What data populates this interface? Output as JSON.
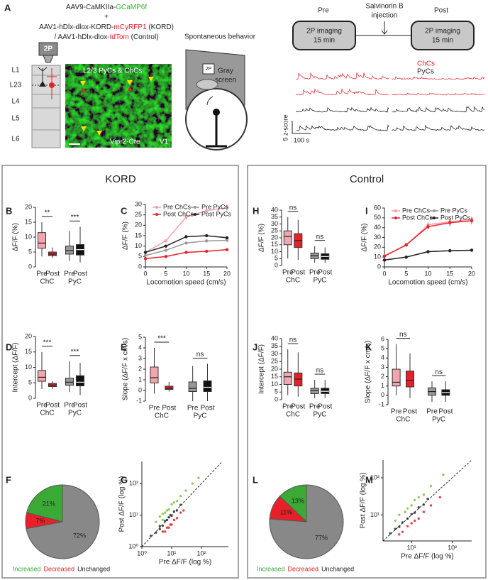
{
  "panel_a": {
    "label": "A",
    "virus": [
      [
        "AAV9-CaMKIIa-",
        "GCaMP6f"
      ],
      [
        "+"
      ],
      [
        "AAV1-hDlx-dlox-KORD-",
        "mCyRFP1",
        " (KORD)"
      ],
      [
        "/ AAV1-hDlx-dlox-",
        "tdTom",
        " (Control)"
      ]
    ],
    "objective": "2P",
    "layers": [
      "L1",
      "L23",
      "L4",
      "L5",
      "L6"
    ],
    "image_labels": {
      "cells": "L2/3 PyCs & ChCs",
      "line": "Vipr2-Cre",
      "area": "V1"
    },
    "behavior": {
      "title": "Spontaneous behavior",
      "objective": "2P",
      "screen": [
        "Gray",
        "screen"
      ]
    },
    "protocol": {
      "pre": "Pre",
      "post": "Post",
      "injection": [
        "Salvinorin B",
        "injection"
      ],
      "imaging": [
        "2P imaging",
        "15 min"
      ]
    },
    "traces": {
      "legend": [
        "ChCs",
        "PyCs"
      ],
      "scale_y": "5 z-score",
      "scale_x": "100 s"
    }
  },
  "sections": [
    "KORD",
    "Control"
  ],
  "chart_data": [
    {
      "type": "box",
      "label": "B",
      "ylabel": "ΔF/F (%)",
      "ylim": [
        0,
        20
      ],
      "yticks": [
        0,
        5,
        10,
        15,
        20
      ],
      "groups": [
        "ChC",
        "PyC"
      ],
      "categories": [
        "Pre",
        "Post"
      ],
      "significance": [
        "**",
        "***"
      ],
      "boxes": [
        [
          {
            "whislo": 3.5,
            "q1": 6.3,
            "med": 8,
            "q3": 11.5,
            "whishi": 15,
            "color": "#f4a6b0"
          },
          {
            "whislo": 3,
            "q1": 3.8,
            "med": 4.3,
            "q3": 5,
            "whishi": 6.5,
            "color": "#e8202a"
          }
        ],
        [
          {
            "whislo": 2,
            "q1": 4.3,
            "med": 5.5,
            "q3": 7,
            "whishi": 12,
            "color": "#999999"
          },
          {
            "whislo": 1.5,
            "q1": 4,
            "med": 5.8,
            "q3": 7.5,
            "whishi": 13.5,
            "color": "#111111"
          }
        ]
      ]
    },
    {
      "type": "line",
      "label": "C",
      "xlabel": "Locomotion speed (cm/s)",
      "ylabel": "ΔF/F (%)",
      "x": [
        0,
        5,
        10,
        15,
        20
      ],
      "xlim": [
        0,
        20
      ],
      "xticks": [
        0,
        5,
        10,
        15,
        20
      ],
      "ylim": [
        0,
        30
      ],
      "yticks": [
        0,
        5,
        10,
        15,
        20,
        25,
        30
      ],
      "series": [
        {
          "name": "Pre ChCs",
          "color": "#f4a0a8",
          "values": [
            7,
            12.5,
            24,
            27,
            28.5
          ],
          "errors": [
            0.5,
            0.6,
            1.5,
            2,
            1.8
          ]
        },
        {
          "name": "Post ChCs",
          "color": "#e8202a",
          "values": [
            4,
            5,
            7,
            7.5,
            8.3
          ],
          "errors": [
            0.2,
            0.2,
            0.5,
            0.5,
            0.7
          ]
        },
        {
          "name": "Pre PyCs",
          "color": "#999999",
          "values": [
            5.5,
            8,
            11.5,
            12.5,
            12.8
          ],
          "errors": [
            0.2,
            0.2,
            0.3,
            0.4,
            0.4
          ]
        },
        {
          "name": "Post PyCs",
          "color": "#222222",
          "values": [
            7,
            10,
            14.5,
            15,
            14
          ],
          "errors": [
            0.3,
            0.3,
            0.5,
            0.5,
            0.5
          ]
        }
      ]
    },
    {
      "type": "box",
      "label": "D",
      "ylabel": "Intercept (ΔF/F)",
      "ylim": [
        0,
        20
      ],
      "yticks": [
        0,
        5,
        10,
        15,
        20
      ],
      "groups": [
        "ChC",
        "PyC"
      ],
      "categories": [
        "Pre",
        "Post"
      ],
      "significance": [
        "***",
        "***"
      ],
      "boxes": [
        [
          {
            "whislo": 3,
            "q1": 5.5,
            "med": 6.8,
            "q3": 9,
            "whishi": 15,
            "color": "#f4a6b0"
          },
          {
            "whislo": 3,
            "q1": 3.8,
            "med": 4.3,
            "q3": 4.8,
            "whishi": 5.5,
            "color": "#e8202a"
          }
        ],
        [
          {
            "whislo": 2,
            "q1": 4.2,
            "med": 5.2,
            "q3": 6.5,
            "whishi": 12,
            "color": "#999999"
          },
          {
            "whislo": 1,
            "q1": 4,
            "med": 5.2,
            "q3": 7.3,
            "whishi": 11.5,
            "color": "#111111"
          }
        ]
      ]
    },
    {
      "type": "box",
      "label": "E",
      "ylabel": "Slope (ΔF/F x cm/s)",
      "ylim": [
        -1,
        5
      ],
      "yticks": [
        -1,
        0,
        1,
        2,
        3,
        4,
        5
      ],
      "groups": [
        "ChC",
        "PyC"
      ],
      "categories": [
        "Pre",
        "Post"
      ],
      "significance": [
        "***",
        "ns"
      ],
      "boxes": [
        [
          {
            "whislo": -0.3,
            "q1": 0.7,
            "med": 1.2,
            "q3": 2.2,
            "whishi": 4,
            "color": "#f4a6b0"
          },
          {
            "whislo": -0.1,
            "q1": 0.1,
            "med": 0.2,
            "q3": 0.4,
            "whishi": 0.8,
            "color": "#e8202a"
          }
        ],
        [
          {
            "whislo": -1,
            "q1": -0.1,
            "med": 0.2,
            "q3": 0.8,
            "whishi": 2.3,
            "color": "#999999"
          },
          {
            "whislo": -1,
            "q1": -0.1,
            "med": 0.3,
            "q3": 0.9,
            "whishi": 2.5,
            "color": "#111111"
          }
        ]
      ]
    },
    {
      "type": "pie",
      "label": "F",
      "categories": [
        "Increased",
        "Decreased",
        "Unchanged"
      ],
      "values": [
        21,
        7,
        72
      ],
      "value_labels": [
        "21%",
        "7%",
        "72%"
      ],
      "colors": [
        "#3aa935",
        "#e8202a",
        "#888888"
      ],
      "legend_colors": [
        "#3aa935",
        "#e8202a",
        "#222222"
      ]
    },
    {
      "type": "scatter",
      "label": "G",
      "xlabel": "Pre ΔF/F (log %)",
      "ylabel": "Post ΔF/F (log %)",
      "log": true,
      "xlim": [
        1,
        800
      ],
      "ylim": [
        1,
        500
      ],
      "xticks": [
        {
          "value": 1,
          "label": "10⁰"
        },
        {
          "value": 10,
          "label": "10¹"
        },
        {
          "value": 100,
          "label": "10²"
        }
      ],
      "yticks": [
        {
          "value": 1,
          "label": "10⁰"
        },
        {
          "value": 10,
          "label": "10¹"
        },
        {
          "value": 100,
          "label": "10²"
        }
      ],
      "series": [
        {
          "color": "#7dc242",
          "x": [
            3,
            4,
            5,
            6,
            8,
            10,
            12,
            15,
            20,
            30,
            50,
            80,
            5,
            7
          ],
          "y": [
            6,
            9,
            11,
            12,
            15,
            22,
            25,
            28,
            40,
            60,
            100,
            150,
            7,
            14
          ]
        },
        {
          "color": "#e8202a",
          "x": [
            5,
            7,
            9,
            10,
            12,
            15,
            20,
            25,
            8,
            6
          ],
          "y": [
            3,
            4,
            5,
            5,
            7,
            8,
            12,
            14,
            4,
            3
          ]
        },
        {
          "color": "#333333",
          "x": [
            2,
            3,
            4,
            5,
            6,
            7,
            8,
            10,
            12,
            15,
            20,
            4,
            9
          ],
          "y": [
            2.2,
            2.8,
            4.5,
            4.6,
            6.5,
            7,
            8.5,
            9.5,
            13,
            14,
            21,
            3.6,
            10
          ]
        }
      ]
    },
    {
      "type": "box",
      "label": "H",
      "ylabel": "ΔF/F (%)",
      "ylim": [
        0,
        40
      ],
      "yticks": [
        0,
        5,
        10,
        15,
        20,
        25,
        30,
        35,
        40
      ],
      "groups": [
        "ChC",
        "PyC"
      ],
      "categories": [
        "Pre",
        "Post"
      ],
      "significance": [
        "ns",
        "ns"
      ],
      "boxes": [
        [
          {
            "whislo": 5,
            "q1": 15,
            "med": 21,
            "q3": 25,
            "whishi": 35,
            "color": "#f4a6b0"
          },
          {
            "whislo": 4,
            "q1": 13,
            "med": 18,
            "q3": 23,
            "whishi": 33,
            "color": "#e8202a"
          }
        ],
        [
          {
            "whislo": 2,
            "q1": 5,
            "med": 7,
            "q3": 9,
            "whishi": 14,
            "color": "#999999"
          },
          {
            "whislo": 2,
            "q1": 4.5,
            "med": 6.5,
            "q3": 8.5,
            "whishi": 13,
            "color": "#111111"
          }
        ]
      ]
    },
    {
      "type": "line",
      "label": "I",
      "xlabel": "Locomotion speed (cm/s)",
      "ylabel": "ΔF/F (%)",
      "x": [
        0,
        5,
        10,
        15,
        20
      ],
      "xlim": [
        0,
        20
      ],
      "xticks": [
        0,
        5,
        10,
        15,
        20
      ],
      "ylim": [
        0,
        60
      ],
      "yticks": [
        0,
        10,
        20,
        30,
        40,
        50,
        60
      ],
      "series": [
        {
          "name": "Pre ChCs",
          "color": "#f4a0a8",
          "values": [
            11.5,
            22,
            43,
            46,
            48.5
          ],
          "errors": [
            0.8,
            1.5,
            3,
            3.5,
            3
          ]
        },
        {
          "name": "Post ChCs",
          "color": "#e8202a",
          "values": [
            11,
            22.5,
            41,
            45,
            47
          ],
          "errors": [
            0.8,
            1.5,
            3,
            3.5,
            3.5
          ]
        },
        {
          "name": "Pre PyCs",
          "color": "#999999",
          "values": [
            7,
            10,
            15.5,
            16.5,
            17
          ],
          "errors": [
            0.3,
            0.4,
            0.5,
            0.5,
            0.5
          ]
        },
        {
          "name": "Post PyCs",
          "color": "#222222",
          "values": [
            7,
            10,
            15.5,
            16.5,
            17
          ],
          "errors": [
            0.3,
            0.4,
            0.5,
            0.5,
            0.5
          ]
        }
      ]
    },
    {
      "type": "box",
      "label": "J",
      "ylabel": "Intercept (ΔF/F)",
      "ylim": [
        0,
        40
      ],
      "yticks": [
        0,
        5,
        10,
        15,
        20,
        25,
        30,
        35,
        40
      ],
      "groups": [
        "ChC",
        "PyC"
      ],
      "categories": [
        "Pre",
        "Post"
      ],
      "significance": [
        "ns",
        "ns"
      ],
      "boxes": [
        [
          {
            "whislo": 3,
            "q1": 10,
            "med": 15,
            "q3": 18,
            "whishi": 33,
            "color": "#f4a6b0"
          },
          {
            "whislo": 2,
            "q1": 9,
            "med": 13.5,
            "q3": 17.5,
            "whishi": 31,
            "color": "#e8202a"
          }
        ],
        [
          {
            "whislo": 1,
            "q1": 4,
            "med": 6,
            "q3": 7.5,
            "whishi": 13,
            "color": "#999999"
          },
          {
            "whislo": 1,
            "q1": 4,
            "med": 5.5,
            "q3": 7.5,
            "whishi": 13,
            "color": "#111111"
          }
        ]
      ]
    },
    {
      "type": "box",
      "label": "K",
      "ylabel": "Slope (ΔF/F x cm/s)",
      "ylim": [
        -1,
        6
      ],
      "yticks": [
        -1,
        0,
        1,
        2,
        3,
        4,
        5,
        6
      ],
      "groups": [
        "ChC",
        "PyC"
      ],
      "categories": [
        "Pre",
        "Post"
      ],
      "significance": [
        "ns",
        "ns"
      ],
      "boxes": [
        [
          {
            "whislo": 0,
            "q1": 1,
            "med": 1.4,
            "q3": 2.8,
            "whishi": 5.5,
            "color": "#f4a6b0"
          },
          {
            "whislo": -0.3,
            "q1": 0.9,
            "med": 1.6,
            "q3": 2.6,
            "whishi": 4.5,
            "color": "#e8202a"
          }
        ],
        [
          {
            "whislo": -0.7,
            "q1": 0,
            "med": 0.4,
            "q3": 0.8,
            "whishi": 1.5,
            "color": "#999999"
          },
          {
            "whislo": -0.7,
            "q1": 0,
            "med": 0.3,
            "q3": 0.6,
            "whishi": 1.5,
            "color": "#111111"
          }
        ]
      ]
    },
    {
      "type": "pie",
      "label": "L",
      "categories": [
        "Increased",
        "Decreased",
        "Unchanged"
      ],
      "values": [
        13,
        11,
        77
      ],
      "value_labels": [
        "13%",
        "11%",
        "77%"
      ],
      "colors": [
        "#3aa935",
        "#e8202a",
        "#888888"
      ],
      "legend_colors": [
        "#3aa935",
        "#e8202a",
        "#222222"
      ]
    },
    {
      "type": "scatter",
      "label": "M",
      "xlabel": "Pre ΔF/F (log %)",
      "ylabel": "Post ΔF/F (log %)",
      "log": true,
      "xlim": [
        2,
        300
      ],
      "ylim": [
        2,
        300
      ],
      "xticks": [
        {
          "value": 10,
          "label": "10¹"
        },
        {
          "value": 100,
          "label": "10²"
        }
      ],
      "yticks": [
        {
          "value": 10,
          "label": "10¹"
        },
        {
          "value": 100,
          "label": "10²"
        }
      ],
      "series": [
        {
          "color": "#7dc242",
          "x": [
            4,
            5,
            7,
            8,
            10,
            12,
            15,
            20,
            30,
            60
          ],
          "y": [
            7,
            10,
            12,
            15,
            18,
            25,
            30,
            35,
            60,
            120
          ]
        },
        {
          "color": "#e8202a",
          "x": [
            5,
            6,
            8,
            10,
            12,
            15,
            20,
            30,
            50
          ],
          "y": [
            3,
            3.5,
            5,
            6,
            7,
            8,
            12,
            18,
            30
          ]
        },
        {
          "color": "#333333",
          "x": [
            3,
            4,
            5,
            6,
            8,
            10,
            12,
            15,
            20,
            25
          ],
          "y": [
            3.2,
            4.2,
            4.8,
            6.3,
            8,
            10.5,
            11.5,
            16,
            19,
            27
          ]
        }
      ]
    }
  ]
}
